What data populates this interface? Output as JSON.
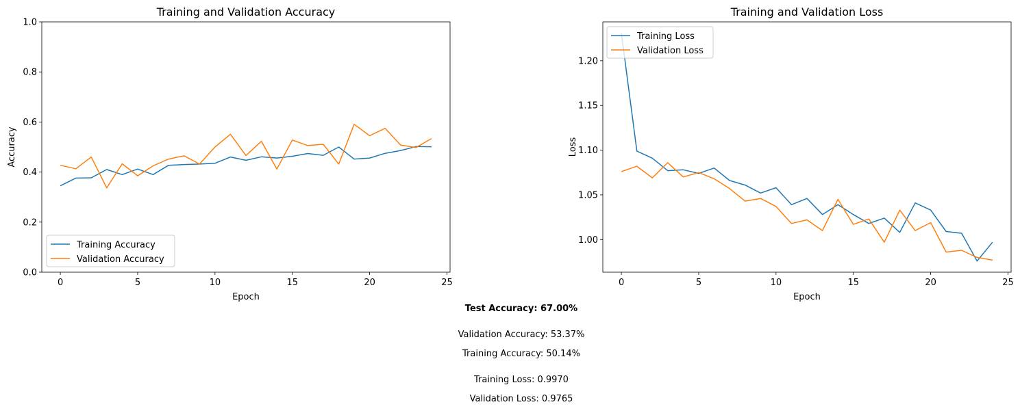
{
  "colors": {
    "training": "#1f77b4",
    "validation": "#ff7f0e"
  },
  "chart_data": [
    {
      "type": "line",
      "title": "Training and Validation Accuracy",
      "xlabel": "Epoch",
      "ylabel": "Accuracy",
      "xlim": [
        -1.2,
        25.2
      ],
      "ylim": [
        0,
        1.0
      ],
      "xticks": [
        0,
        5,
        10,
        15,
        20,
        25
      ],
      "yticks": [
        0.0,
        0.2,
        0.4,
        0.6,
        0.8,
        1.0
      ],
      "ytick_labels": [
        "0.0",
        "0.2",
        "0.4",
        "0.6",
        "0.8",
        "1.0"
      ],
      "legend_position": "lower-left",
      "grid": false,
      "x": [
        0,
        1,
        2,
        3,
        4,
        5,
        6,
        7,
        8,
        9,
        10,
        11,
        12,
        13,
        14,
        15,
        16,
        17,
        18,
        19,
        20,
        21,
        22,
        23,
        24
      ],
      "series": [
        {
          "name": "Training Accuracy",
          "color": "#1f77b4",
          "values": [
            0.345,
            0.376,
            0.377,
            0.41,
            0.39,
            0.412,
            0.39,
            0.427,
            0.43,
            0.432,
            0.435,
            0.46,
            0.447,
            0.461,
            0.456,
            0.463,
            0.474,
            0.467,
            0.5,
            0.452,
            0.456,
            0.475,
            0.486,
            0.502,
            0.501
          ]
        },
        {
          "name": "Validation Accuracy",
          "color": "#ff7f0e",
          "values": [
            0.427,
            0.413,
            0.46,
            0.337,
            0.433,
            0.385,
            0.425,
            0.452,
            0.465,
            0.432,
            0.5,
            0.551,
            0.466,
            0.523,
            0.412,
            0.528,
            0.506,
            0.511,
            0.432,
            0.591,
            0.545,
            0.575,
            0.508,
            0.498,
            0.534
          ]
        }
      ]
    },
    {
      "type": "line",
      "title": "Training and Validation Loss",
      "xlabel": "Epoch",
      "ylabel": "Loss",
      "xlim": [
        -1.2,
        25.2
      ],
      "ylim": [
        0.9635,
        1.2435
      ],
      "xticks": [
        0,
        5,
        10,
        15,
        20,
        25
      ],
      "yticks": [
        1.0,
        1.05,
        1.1,
        1.15,
        1.2
      ],
      "ytick_labels": [
        "1.00",
        "1.05",
        "1.10",
        "1.15",
        "1.20"
      ],
      "legend_position": "top-left",
      "grid": false,
      "x": [
        0,
        1,
        2,
        3,
        4,
        5,
        6,
        7,
        8,
        9,
        10,
        11,
        12,
        13,
        14,
        15,
        16,
        17,
        18,
        19,
        20,
        21,
        22,
        23,
        24
      ],
      "series": [
        {
          "name": "Training Loss",
          "color": "#1f77b4",
          "values": [
            1.231,
            1.099,
            1.091,
            1.077,
            1.078,
            1.074,
            1.08,
            1.066,
            1.061,
            1.052,
            1.058,
            1.039,
            1.046,
            1.028,
            1.039,
            1.028,
            1.018,
            1.024,
            1.008,
            1.041,
            1.033,
            1.009,
            1.007,
            0.976,
            0.997
          ]
        },
        {
          "name": "Validation Loss",
          "color": "#ff7f0e",
          "values": [
            1.076,
            1.082,
            1.069,
            1.086,
            1.07,
            1.075,
            1.068,
            1.057,
            1.043,
            1.046,
            1.037,
            1.018,
            1.022,
            1.01,
            1.045,
            1.017,
            1.023,
            0.997,
            1.033,
            1.01,
            1.019,
            0.986,
            0.988,
            0.98,
            0.977
          ]
        }
      ]
    }
  ],
  "stats": {
    "test_accuracy": "Test Accuracy: 67.00%",
    "validation_accuracy": "Validation Accuracy: 53.37%",
    "training_accuracy": "Training Accuracy: 50.14%",
    "training_loss": "Training Loss: 0.9970",
    "validation_loss": "Validation Loss: 0.9765"
  }
}
